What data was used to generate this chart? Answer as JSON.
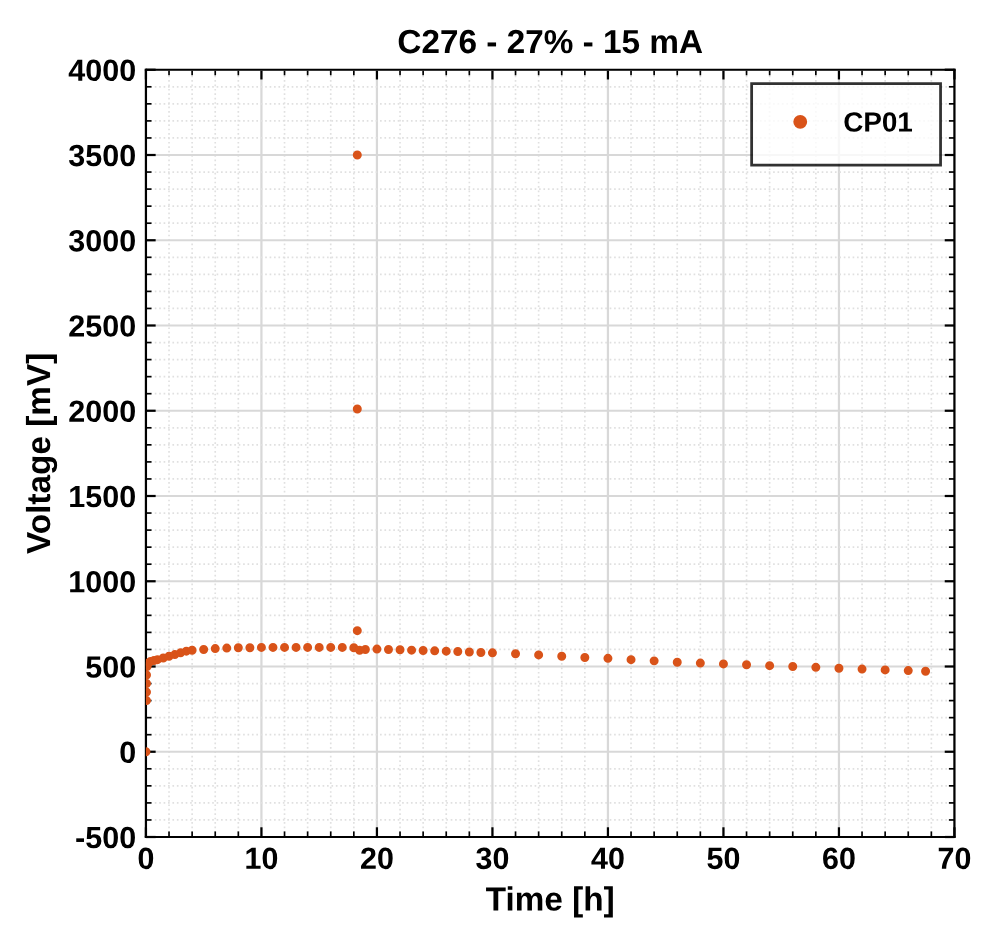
{
  "chart_data": {
    "type": "scatter",
    "title": "C276 - 27% - 15 mA",
    "xlabel": "Time [h]",
    "ylabel": "Voltage [mV]",
    "xlim": [
      0,
      70
    ],
    "ylim": [
      -500,
      4000
    ],
    "xticks": [
      0,
      10,
      20,
      30,
      40,
      50,
      60,
      70
    ],
    "yticks": [
      -500,
      0,
      500,
      1000,
      1500,
      2000,
      2500,
      3000,
      3500,
      4000
    ],
    "grid": true,
    "legend": "top right",
    "marker": "circle",
    "series": [
      {
        "name": "CP01",
        "color": "#d95319",
        "x": [
          0,
          0.05,
          0.05,
          0.05,
          0.05,
          0.1,
          0.2,
          0.4,
          0.7,
          1,
          1.5,
          2,
          2.5,
          3,
          3.5,
          4,
          5,
          6,
          7,
          8,
          9,
          10,
          11,
          12,
          13,
          14,
          15,
          16,
          17,
          18,
          18.3,
          18.3,
          18.3,
          18.5,
          19,
          20,
          21,
          22,
          23,
          24,
          25,
          26,
          27,
          28,
          29,
          30,
          32,
          34,
          36,
          38,
          40,
          42,
          44,
          46,
          48,
          50,
          52,
          54,
          56,
          58,
          60,
          62,
          64,
          66,
          67.5
        ],
        "values": [
          0,
          300,
          350,
          400,
          450,
          500,
          520,
          530,
          535,
          540,
          550,
          560,
          570,
          580,
          590,
          595,
          600,
          605,
          608,
          610,
          610,
          612,
          612,
          612,
          612,
          612,
          612,
          612,
          612,
          610,
          3500,
          2010,
          710,
          595,
          600,
          602,
          600,
          598,
          596,
          594,
          592,
          590,
          588,
          585,
          582,
          580,
          575,
          568,
          560,
          553,
          548,
          540,
          533,
          525,
          520,
          515,
          510,
          505,
          500,
          495,
          490,
          485,
          480,
          476,
          472
        ]
      }
    ]
  }
}
